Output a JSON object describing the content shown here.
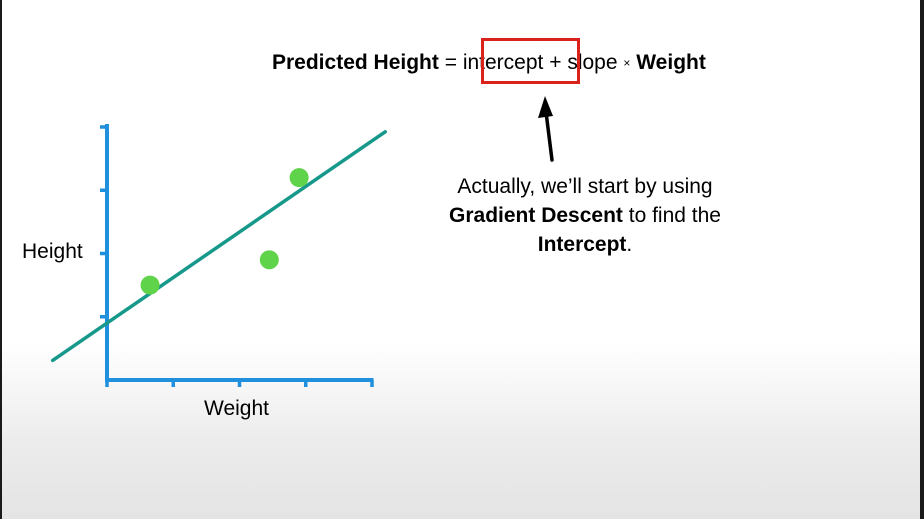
{
  "equation": {
    "lhs": "Predicted Height",
    "equals": "=",
    "term_intercept": "intercept",
    "plus": "+",
    "term_slope": "slope",
    "times": "×",
    "term_weight": "Weight"
  },
  "annotation": {
    "line1": "Actually, we’ll start by using",
    "line2_bold": "Gradient Descent",
    "line2_rest": " to find the",
    "line3_bold": "Intercept",
    "line3_rest": "."
  },
  "chart_data": {
    "type": "scatter",
    "xlabel": "Weight",
    "ylabel": "Height",
    "xlim": [
      0,
      4
    ],
    "ylim": [
      0,
      4
    ],
    "x_ticks": [
      1,
      2,
      3,
      4
    ],
    "y_ticks": [
      1,
      2,
      3,
      4
    ],
    "points": [
      {
        "x": 0.65,
        "y": 1.5
      },
      {
        "x": 2.45,
        "y": 1.9
      },
      {
        "x": 2.9,
        "y": 3.2
      }
    ],
    "fit_line": {
      "intercept": 0.9,
      "slope": 0.72
    },
    "colors": {
      "axis": "#1f90dd",
      "points": "#5fd34a",
      "line": "#16988a",
      "highlight_box": "#d9221c"
    }
  }
}
